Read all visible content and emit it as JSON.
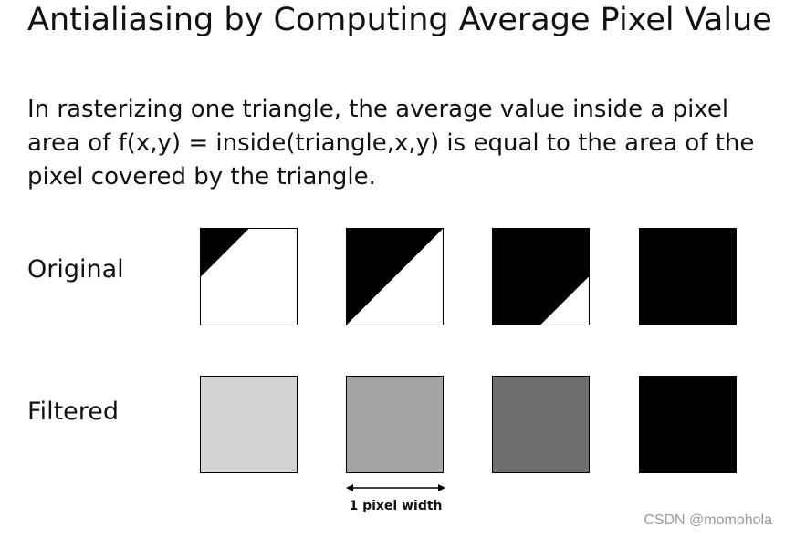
{
  "title": "Antialiasing by Computing Average Pixel Value",
  "description": "In rasterizing one triangle, the average value inside a pixel area of f(x,y) = inside(triangle,x,y) is equal to the area of the pixel covered by the triangle.",
  "rows": {
    "original_label": "Original",
    "filtered_label": "Filtered"
  },
  "pixels": [
    {
      "coverage": 0.125,
      "filtered_color": "#d4d4d6"
    },
    {
      "coverage": 0.5,
      "filtered_color": "#a3a3a3"
    },
    {
      "coverage": 0.875,
      "filtered_color": "#6f6f6f"
    },
    {
      "coverage": 1.0,
      "filtered_color": "#000000"
    }
  ],
  "width_marker": {
    "label": "1 pixel width"
  },
  "watermark": "CSDN @momohola"
}
